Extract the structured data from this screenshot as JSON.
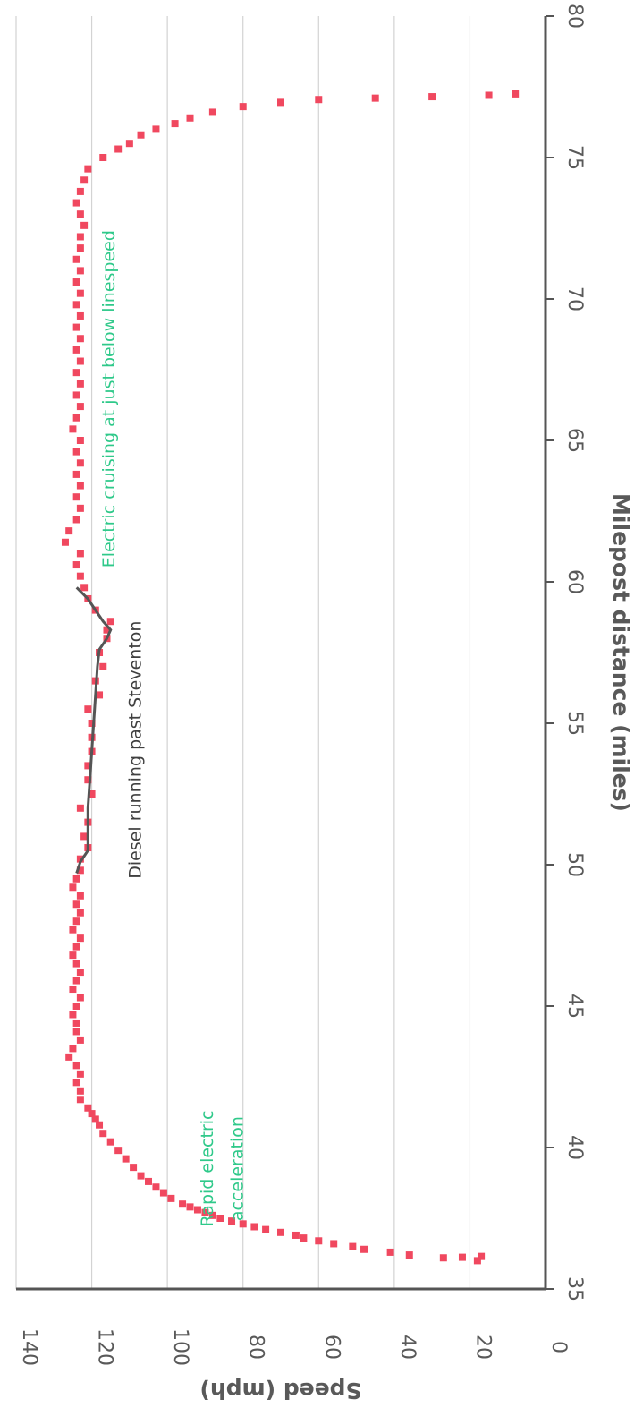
{
  "chart_data": {
    "type": "scatter",
    "xlabel": "Milepost distance (miles)",
    "ylabel": "Speed (mph)",
    "xlim": [
      35,
      80
    ],
    "ylim": [
      0,
      140
    ],
    "x_ticks": [
      "35",
      "40",
      "45",
      "50",
      "55",
      "60",
      "65",
      "70",
      "75",
      "80"
    ],
    "y_ticks": [
      "0",
      "20",
      "40",
      "60",
      "80",
      "100",
      "120",
      "140"
    ],
    "grid": "horizontal",
    "legend": "none",
    "orientation": "rotated 90 degrees",
    "colors": {
      "points": "#f0485f",
      "diesel_line": "#555555",
      "axis": "#555555",
      "grid": "#d3d3d3",
      "annotation_electric": "#2fc98a",
      "annotation_diesel": "#404040"
    },
    "annotations": [
      {
        "text": "Rapid electric",
        "x": 37.2,
        "y": 88
      },
      {
        "text": "acceleration",
        "x": 37.4,
        "y": 80
      },
      {
        "text": "Diesel running past Steventon",
        "x": 49.5,
        "y": 107
      },
      {
        "text": "Electric cruising at just below linespeed",
        "x": 60.5,
        "y": 114
      }
    ],
    "series": [
      {
        "name": "",
        "kind": "scatter",
        "x": [
          36.0,
          36.1,
          36.12,
          36.15,
          36.2,
          36.3,
          36.4,
          36.5,
          36.6,
          36.7,
          36.8,
          36.9,
          37.0,
          37.1,
          37.2,
          37.3,
          37.4,
          37.5,
          37.6,
          37.7,
          37.8,
          37.9,
          38.0,
          38.2,
          38.4,
          38.6,
          38.8,
          39.0,
          39.3,
          39.6,
          39.9,
          40.2,
          40.5,
          40.8,
          41.0,
          41.2,
          41.4,
          41.7,
          42.0,
          42.3,
          42.6,
          42.9,
          43.2,
          43.5,
          43.8,
          44.1,
          44.4,
          44.7,
          45.0,
          45.3,
          45.6,
          45.9,
          46.2,
          46.5,
          46.8,
          47.1,
          47.4,
          47.7,
          48.0,
          48.3,
          48.6,
          48.9,
          49.2,
          49.5,
          49.8,
          50.2,
          50.6,
          51.0,
          51.5,
          52.0,
          52.5,
          53.0,
          53.5,
          54.0,
          54.5,
          55.0,
          55.5,
          56.0,
          56.5,
          57.0,
          57.5,
          58.0,
          58.3,
          58.6,
          59.0,
          59.4,
          59.8,
          60.2,
          60.6,
          61.0,
          61.4,
          61.8,
          62.2,
          62.6,
          63.0,
          63.4,
          63.8,
          64.2,
          64.6,
          65.0,
          65.4,
          65.8,
          66.2,
          66.6,
          67.0,
          67.4,
          67.8,
          68.2,
          68.6,
          69.0,
          69.4,
          69.8,
          70.2,
          70.6,
          71.0,
          71.4,
          71.8,
          72.2,
          72.6,
          73.0,
          73.4,
          73.8,
          74.2,
          74.6,
          75.0,
          75.3,
          75.5,
          75.8,
          76.0,
          76.2,
          76.4,
          76.6,
          76.8,
          76.95,
          77.05,
          77.1,
          77.15,
          77.2,
          77.25
        ],
        "y": [
          18,
          27,
          22,
          17,
          36,
          41,
          48,
          51,
          56,
          60,
          64,
          66,
          70,
          74,
          77,
          80,
          83,
          86,
          88,
          90,
          92,
          94,
          96,
          99,
          101,
          103,
          105,
          107,
          109,
          111,
          113,
          115,
          117,
          118,
          119,
          120,
          121,
          123,
          123,
          124,
          123,
          124,
          126,
          125,
          123,
          124,
          124,
          125,
          124,
          123,
          125,
          124,
          123,
          124,
          125,
          124,
          123,
          125,
          124,
          123,
          124,
          123,
          125,
          124,
          123,
          123,
          121,
          122,
          121,
          123,
          120,
          121,
          121,
          120,
          120,
          120,
          121,
          118,
          119,
          117,
          118,
          116,
          116,
          115,
          119,
          121,
          122,
          123,
          124,
          123,
          127,
          126,
          124,
          123,
          124,
          123,
          124,
          123,
          124,
          123,
          125,
          124,
          123,
          124,
          123,
          124,
          123,
          124,
          123,
          124,
          123,
          124,
          123,
          124,
          123,
          124,
          123,
          123,
          122,
          123,
          124,
          123,
          122,
          121,
          117,
          113,
          110,
          107,
          103,
          98,
          94,
          88,
          80,
          70,
          60,
          45,
          30,
          15,
          8
        ]
      },
      {
        "name": "",
        "kind": "line",
        "x": [
          49.7,
          50.1,
          50.5,
          51.0,
          51.5,
          52.0,
          53.0,
          54.0,
          55.0,
          56.0,
          57.0,
          57.6,
          58.0,
          58.3,
          58.6,
          59.0,
          59.4,
          59.8
        ],
        "y": [
          124,
          123,
          121,
          121,
          121,
          121,
          120.5,
          120,
          119.5,
          119,
          118.5,
          118,
          116,
          115,
          117,
          119,
          121,
          124
        ]
      }
    ]
  }
}
